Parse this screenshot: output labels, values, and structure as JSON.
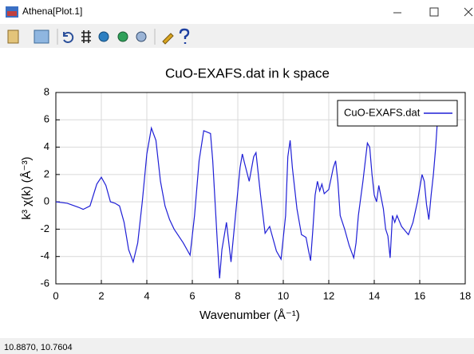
{
  "window": {
    "title": "Athena[Plot.1]"
  },
  "status_bar": {
    "text": "10.8870,  10.7604"
  },
  "chart_data": {
    "type": "line",
    "title": "CuO-EXAFS.dat in k space",
    "x_label": "Wavenumber   (Å⁻¹)",
    "y_label": "k³ χ(k)   (Å⁻³)",
    "xlim": [
      0,
      18
    ],
    "ylim": [
      -6,
      8
    ],
    "xticks": [
      0,
      2,
      4,
      6,
      8,
      10,
      12,
      14,
      16,
      18
    ],
    "yticks": [
      -6,
      -4,
      -2,
      0,
      2,
      4,
      6,
      8
    ],
    "grid": true,
    "legend": "upper right",
    "x": [
      0,
      0.5,
      1,
      1.2,
      1.5,
      1.8,
      2,
      2.2,
      2.4,
      2.6,
      2.8,
      3,
      3.2,
      3.4,
      3.6,
      3.8,
      4,
      4.2,
      4.4,
      4.6,
      4.8,
      5,
      5.2,
      5.6,
      5.9,
      6.1,
      6.3,
      6.5,
      6.8,
      6.9,
      7.1,
      7.2,
      7.3,
      7.5,
      7.7,
      7.9,
      8.1,
      8.2,
      8.3,
      8.5,
      8.7,
      8.8,
      9,
      9.2,
      9.4,
      9.7,
      9.9,
      10.1,
      10.2,
      10.3,
      10.4,
      10.6,
      10.8,
      11,
      11.1,
      11.2,
      11.3,
      11.4,
      11.5,
      11.6,
      11.7,
      11.8,
      12,
      12.2,
      12.3,
      12.4,
      12.5,
      12.7,
      12.9,
      13.1,
      13.2,
      13.3,
      13.5,
      13.7,
      13.8,
      13.9,
      14,
      14.1,
      14.2,
      14.4,
      14.5,
      14.6,
      14.7,
      14.8,
      14.9,
      15,
      15.2,
      15.4,
      15.5,
      15.7,
      15.9,
      16.1,
      16.2,
      16.3,
      16.4,
      16.5,
      16.6,
      16.7,
      16.8,
      16.9
    ],
    "series": [
      {
        "name": "CuO-EXAFS.dat",
        "color": "#1f1fd6",
        "values": [
          0,
          -0.1,
          -0.4,
          -0.55,
          -0.3,
          1.3,
          1.8,
          1.2,
          0,
          -0.1,
          -0.3,
          -1.5,
          -3.5,
          -4.4,
          -3,
          0,
          3.5,
          5.4,
          4.5,
          1.5,
          -0.3,
          -1.3,
          -2,
          -3,
          -3.9,
          -1,
          3,
          5.2,
          5,
          3,
          -3,
          -5.6,
          -3.5,
          -1.5,
          -4.4,
          -1,
          2.5,
          3.5,
          2.8,
          1.5,
          3.3,
          3.6,
          0.5,
          -2.3,
          -1.8,
          -3.6,
          -4.2,
          -1,
          3.3,
          4.5,
          2.5,
          -0.5,
          -2.4,
          -2.6,
          -3.5,
          -4.3,
          -2,
          0.5,
          1.5,
          0.8,
          1.3,
          0.6,
          0.9,
          2.5,
          3,
          1.5,
          -1,
          -2,
          -3.2,
          -4.1,
          -3,
          -1,
          1.5,
          4.3,
          4,
          2,
          0.5,
          0,
          1.2,
          -0.5,
          -2,
          -2.5,
          -4.1,
          -1,
          -1.5,
          -1,
          -1.8,
          -2.2,
          -2.4,
          -1.5,
          0,
          2,
          1.5,
          -0.2,
          -1.3,
          0.5,
          2,
          4,
          6.5,
          6.3
        ]
      }
    ]
  }
}
